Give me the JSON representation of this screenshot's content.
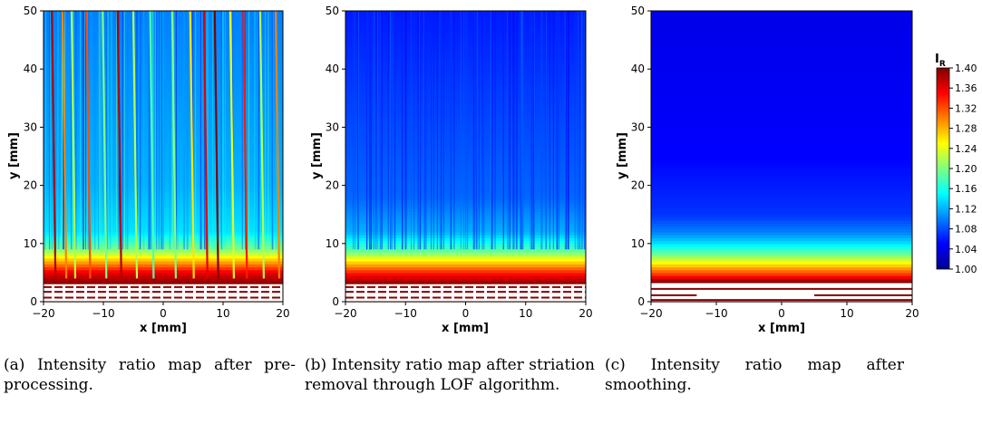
{
  "chart_data": [
    {
      "type": "heatmap",
      "panel": "a",
      "xlabel": "x [mm]",
      "ylabel": "y [mm]",
      "xlim": [
        -20,
        20
      ],
      "ylim": [
        0,
        50
      ],
      "x_ticks": [
        "−20",
        "−10",
        "0",
        "10",
        "20"
      ],
      "y_ticks": [
        "0",
        "10",
        "20",
        "30",
        "40",
        "50"
      ],
      "x_tick_values": [
        -20,
        -10,
        0,
        10,
        20
      ],
      "y_tick_values": [
        0,
        10,
        20,
        30,
        40,
        50
      ],
      "value_profile": [
        {
          "y": 0,
          "value": 1.4
        },
        {
          "y": 3,
          "value": 1.4
        },
        {
          "y": 5,
          "value": 1.36
        },
        {
          "y": 7,
          "value": 1.28
        },
        {
          "y": 9,
          "value": 1.2
        },
        {
          "y": 12,
          "value": 1.14
        },
        {
          "y": 20,
          "value": 1.12
        },
        {
          "y": 50,
          "value": 1.1
        }
      ],
      "striations": [
        {
          "x": -18.6,
          "value": 1.38
        },
        {
          "x": -16.8,
          "value": 1.3
        },
        {
          "x": -15.3,
          "value": 1.22
        },
        {
          "x": -12.8,
          "value": 1.32
        },
        {
          "x": -10.1,
          "value": 1.2
        },
        {
          "x": -7.6,
          "value": 1.38
        },
        {
          "x": -5.0,
          "value": 1.22
        },
        {
          "x": -2.2,
          "value": 1.18
        },
        {
          "x": 1.5,
          "value": 1.2
        },
        {
          "x": 4.5,
          "value": 1.26
        },
        {
          "x": 6.8,
          "value": 1.36
        },
        {
          "x": 8.6,
          "value": 1.4
        },
        {
          "x": 11.2,
          "value": 1.24
        },
        {
          "x": 13.4,
          "value": 1.34
        },
        {
          "x": 16.2,
          "value": 1.22
        },
        {
          "x": 18.8,
          "value": 1.3
        }
      ]
    },
    {
      "type": "heatmap",
      "panel": "b",
      "xlabel": "x [mm]",
      "ylabel": "y [mm]",
      "xlim": [
        -20,
        20
      ],
      "ylim": [
        0,
        50
      ],
      "x_ticks": [
        "−20",
        "−10",
        "0",
        "10",
        "20"
      ],
      "y_ticks": [
        "0",
        "10",
        "20",
        "30",
        "40",
        "50"
      ],
      "x_tick_values": [
        -20,
        -10,
        0,
        10,
        20
      ],
      "y_tick_values": [
        0,
        10,
        20,
        30,
        40,
        50
      ],
      "value_profile": [
        {
          "y": 0,
          "value": 1.4
        },
        {
          "y": 3,
          "value": 1.4
        },
        {
          "y": 5,
          "value": 1.34
        },
        {
          "y": 7,
          "value": 1.26
        },
        {
          "y": 9,
          "value": 1.18
        },
        {
          "y": 12,
          "value": 1.12
        },
        {
          "y": 18,
          "value": 1.09
        },
        {
          "y": 50,
          "value": 1.06
        }
      ]
    },
    {
      "type": "heatmap",
      "panel": "c",
      "xlabel": "x [mm]",
      "ylabel": "y [mm]",
      "xlim": [
        -20,
        20
      ],
      "ylim": [
        0,
        50
      ],
      "x_ticks": [
        "−20",
        "−10",
        "0",
        "10",
        "20"
      ],
      "y_ticks": [
        "0",
        "10",
        "20",
        "30",
        "40",
        "50"
      ],
      "x_tick_values": [
        -20,
        -10,
        0,
        10,
        20
      ],
      "y_tick_values": [
        0,
        10,
        20,
        30,
        40,
        50
      ],
      "value_profile": [
        {
          "y": 0,
          "value": 1.4
        },
        {
          "y": 3.5,
          "value": 1.4
        },
        {
          "y": 4.5,
          "value": 1.34
        },
        {
          "y": 6,
          "value": 1.28
        },
        {
          "y": 8,
          "value": 1.2
        },
        {
          "y": 10,
          "value": 1.14
        },
        {
          "y": 12,
          "value": 1.1
        },
        {
          "y": 15,
          "value": 1.07
        },
        {
          "y": 25,
          "value": 1.05
        },
        {
          "y": 50,
          "value": 1.04
        }
      ]
    }
  ],
  "colorbar": {
    "title": "I",
    "title_sub": "R",
    "min": 1.0,
    "max": 1.4,
    "ticks": [
      "1.40",
      "1.36",
      "1.32",
      "1.28",
      "1.24",
      "1.20",
      "1.16",
      "1.12",
      "1.08",
      "1.04",
      "1.00"
    ],
    "tick_values": [
      1.4,
      1.36,
      1.32,
      1.28,
      1.24,
      1.2,
      1.16,
      1.12,
      1.08,
      1.04,
      1.0
    ],
    "colormap": "jet",
    "colors": [
      "#00008f",
      "#0000ff",
      "#0080ff",
      "#00ffff",
      "#80ff80",
      "#ffff00",
      "#ff8000",
      "#ff0000",
      "#800000"
    ]
  },
  "captions": [
    "(a) Intensity ratio map after pre-processing.",
    "(b) Intensity ratio map after striation removal through LOF algorithm.",
    "(c) Intensity ratio map after smoothing."
  ]
}
